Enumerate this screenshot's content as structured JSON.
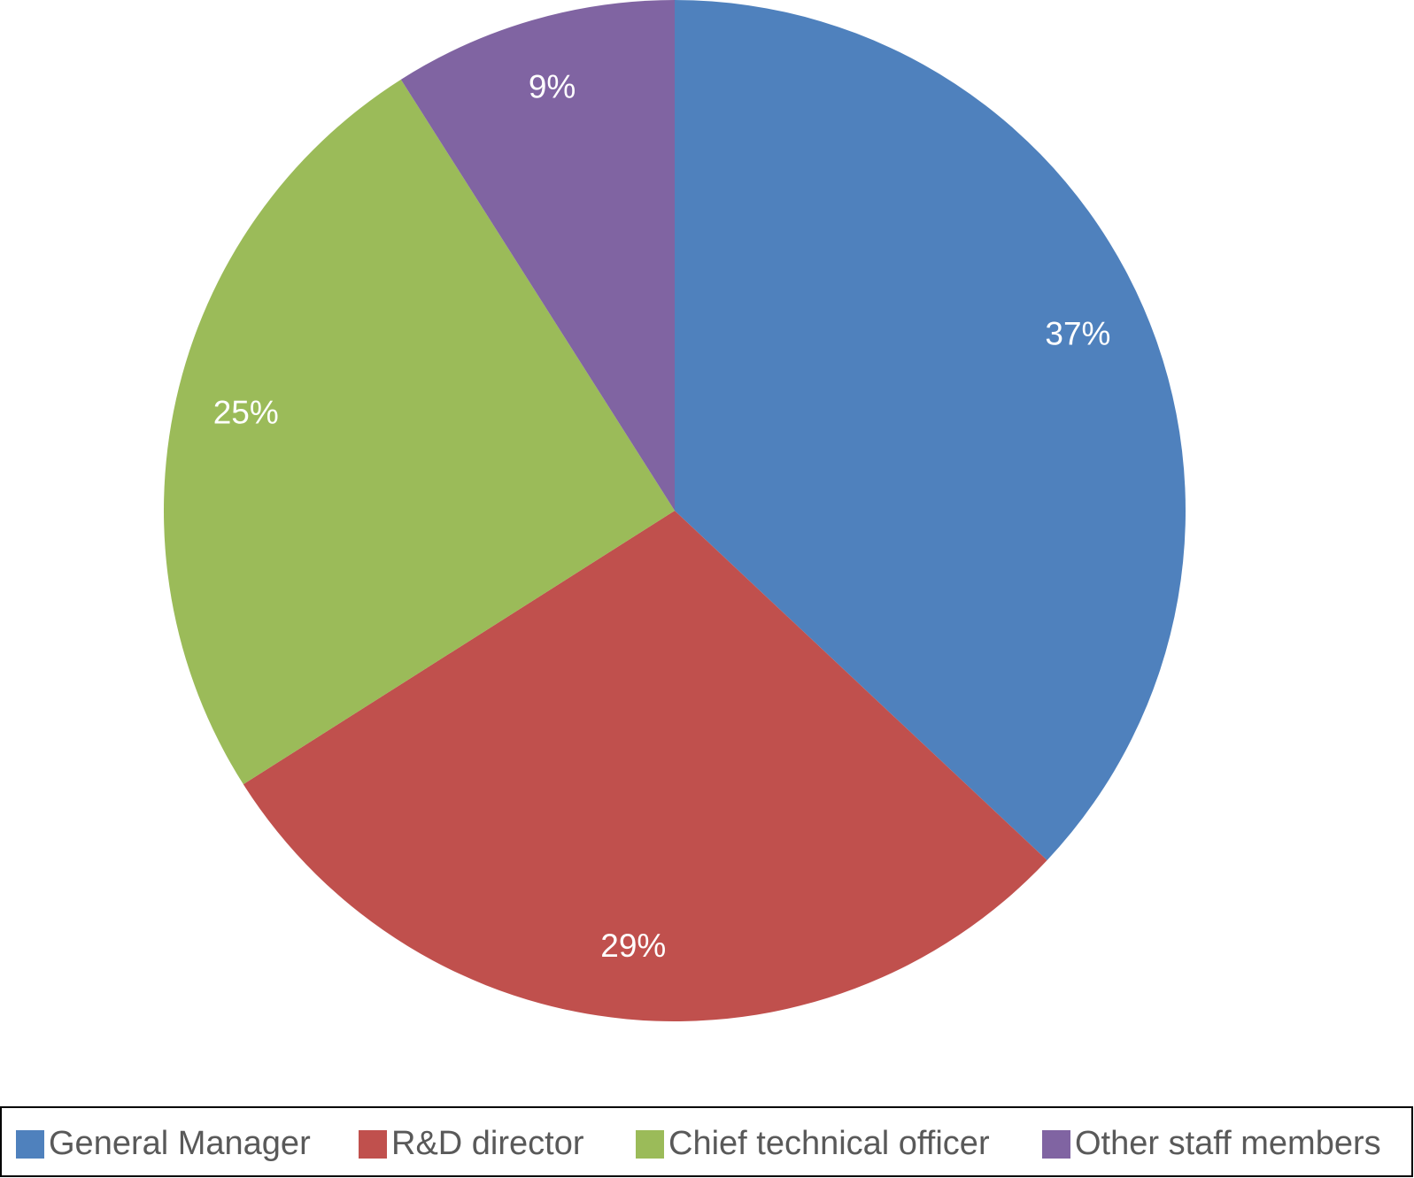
{
  "chart_data": {
    "type": "pie",
    "categories": [
      "General Manager",
      "R&D director",
      "Chief technical officer",
      "Other staff members"
    ],
    "values": [
      37,
      29,
      25,
      9
    ],
    "value_labels": [
      "37%",
      "29%",
      "25%",
      "9%"
    ],
    "colors": [
      "#4f81bd",
      "#c0504d",
      "#9bbb59",
      "#8064a2"
    ],
    "legend": "bottom"
  }
}
